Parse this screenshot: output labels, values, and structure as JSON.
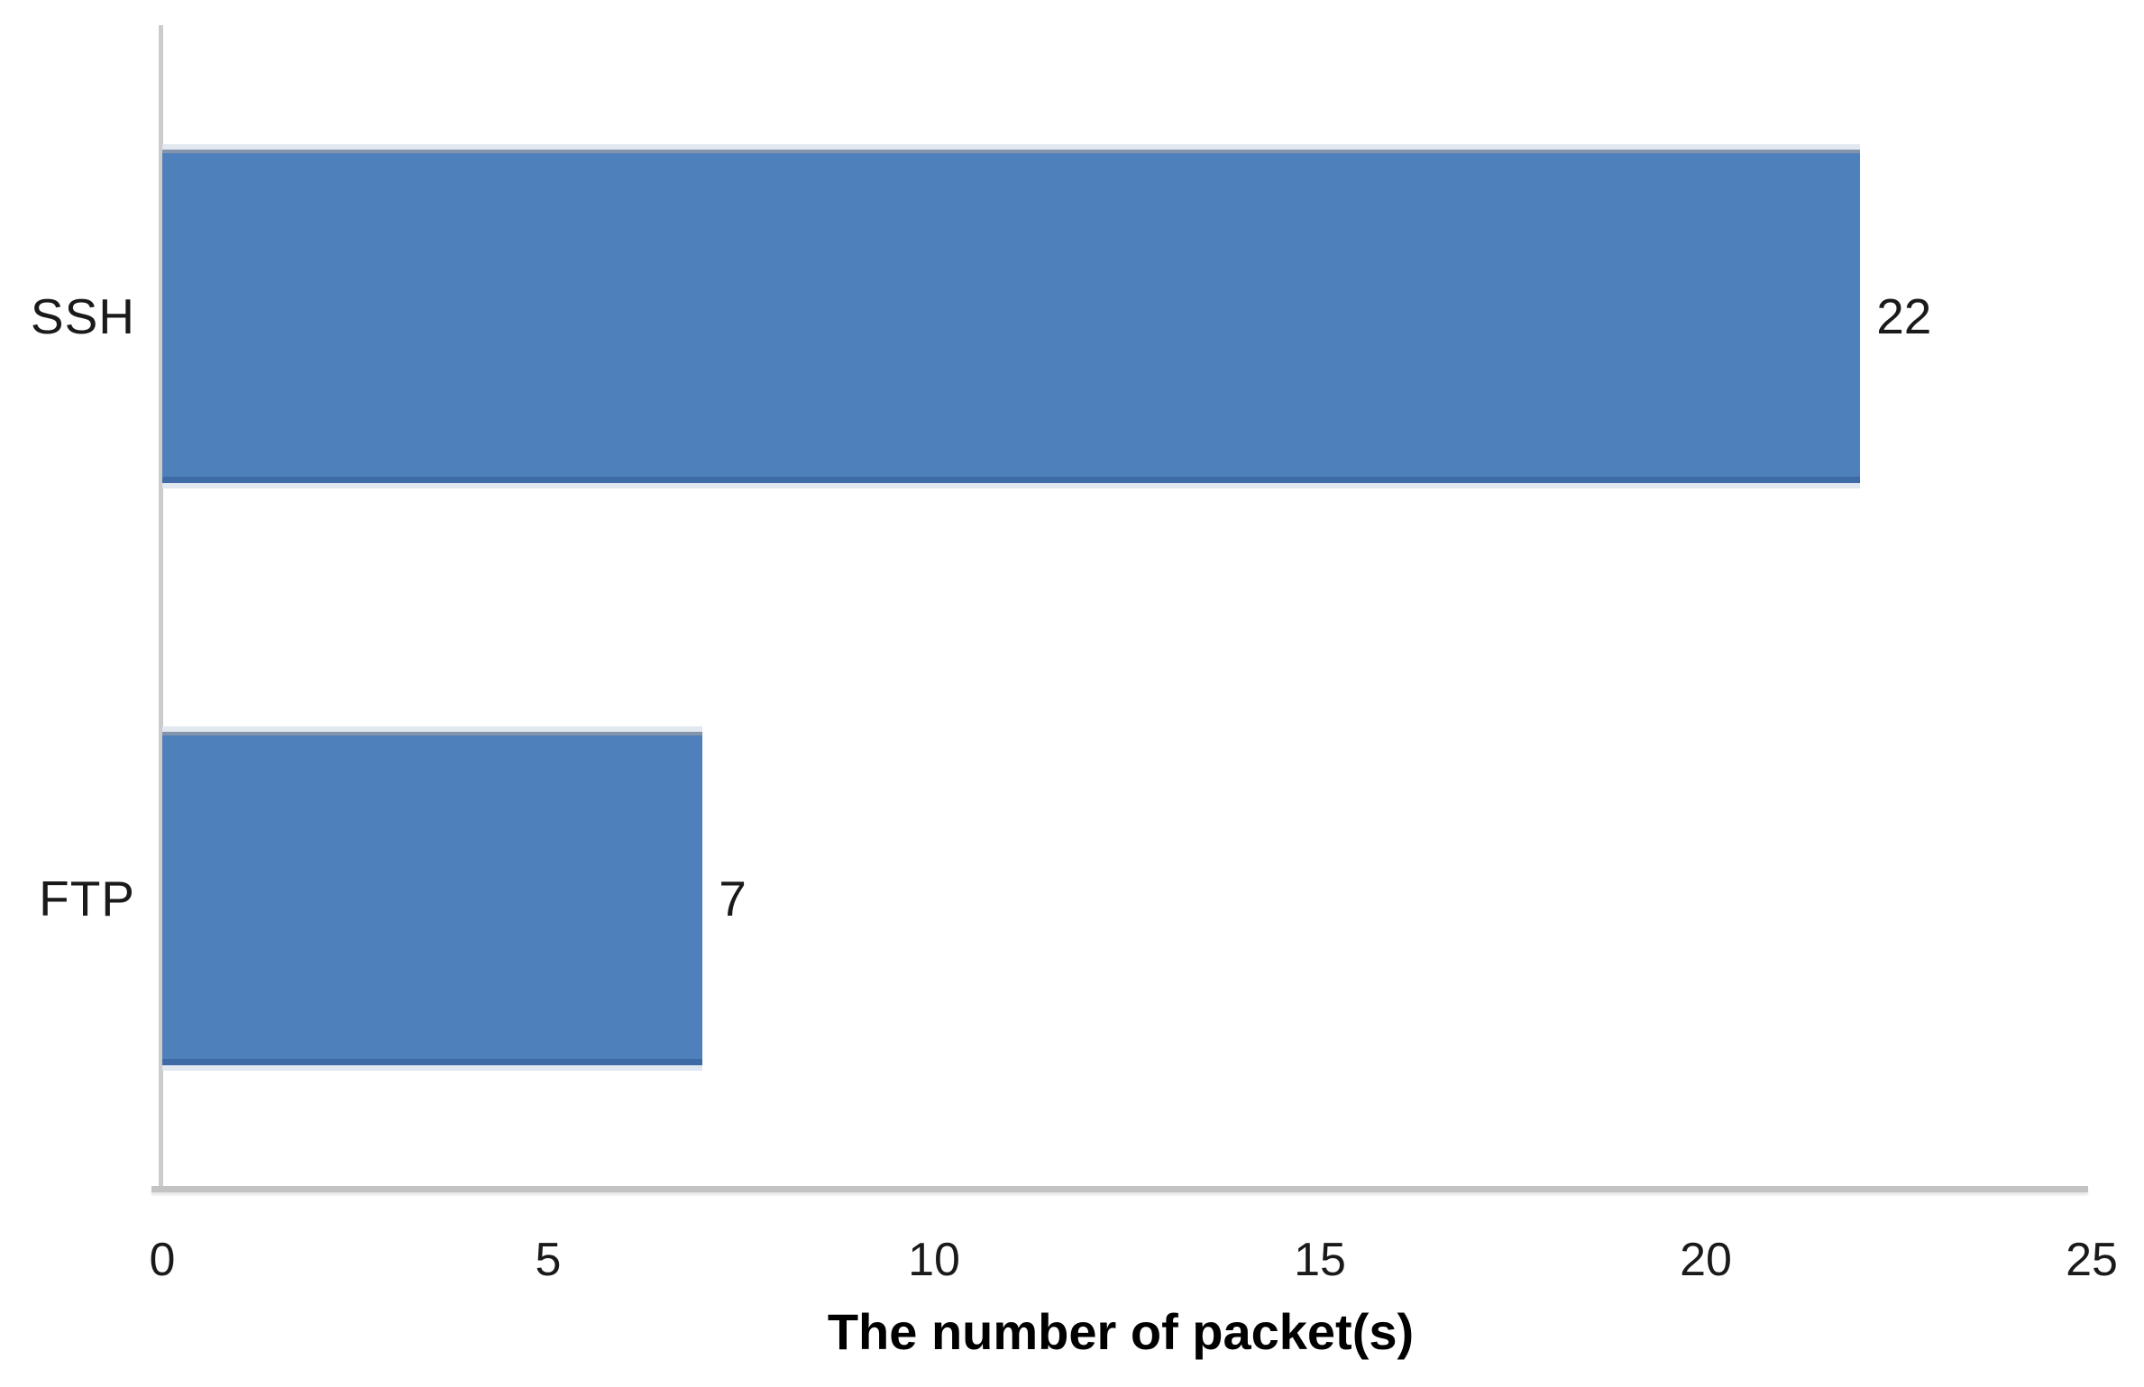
{
  "chart_data": {
    "type": "bar",
    "orientation": "horizontal",
    "title": "",
    "categories": [
      "SSH",
      "FTP"
    ],
    "values": [
      22,
      7
    ],
    "data_labels": [
      "22",
      "7"
    ],
    "xlabel": "The number of packet(s)",
    "xlim": [
      0,
      25
    ],
    "xticks": [
      "0",
      "5",
      "10",
      "15",
      "20",
      "25"
    ],
    "grid": false,
    "legend": "none",
    "colors": {
      "bar": "#4E80BC",
      "bar_edge_top": "#8495AB",
      "bar_edge_bottom": "#3E6BA6",
      "axis_line": "#C3C3C3",
      "text": "#1A1A1A",
      "background": "#FFFFFF"
    }
  }
}
